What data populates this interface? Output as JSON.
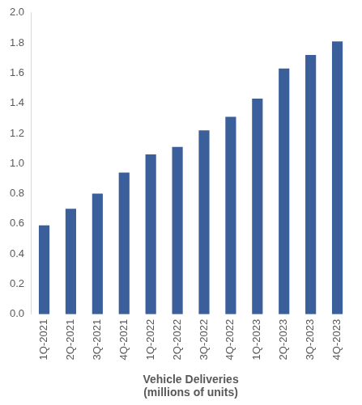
{
  "chart_data": {
    "type": "bar",
    "title": "Vehicle Deliveries",
    "subtitle": "(millions of units)",
    "categories": [
      "1Q-2021",
      "2Q-2021",
      "3Q-2021",
      "4Q-2021",
      "1Q-2022",
      "2Q-2022",
      "3Q-2022",
      "4Q-2022",
      "1Q-2023",
      "2Q-2023",
      "3Q-2023",
      "4Q-2023"
    ],
    "values": [
      0.59,
      0.7,
      0.8,
      0.94,
      1.06,
      1.11,
      1.22,
      1.31,
      1.43,
      1.63,
      1.72,
      1.81
    ],
    "color": "#3b5f9a",
    "ylim": [
      0,
      2.0
    ],
    "yticks": [
      {
        "value": 0,
        "label": "0.0"
      },
      0.2,
      0.4,
      0.6,
      0.8,
      {
        "value": 1.0,
        "label": "1.0"
      },
      1.2,
      1.4,
      1.6,
      1.8,
      {
        "value": 2.0,
        "label": "2.0"
      }
    ],
    "grid": false
  }
}
